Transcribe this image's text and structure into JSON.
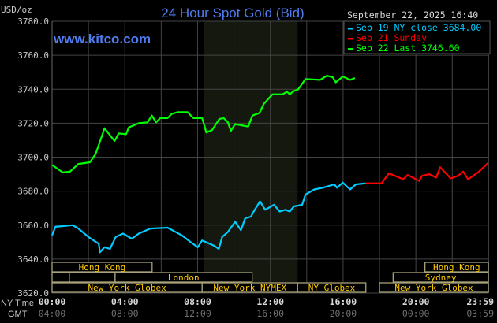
{
  "chart_data": {
    "type": "line",
    "title": "24 Hour Spot Gold (Bid)",
    "watermark": "www.kitco.com",
    "ylabel": "USD/oz",
    "ylim": [
      3620,
      3780
    ],
    "yticks": [
      "3780.0",
      "3760.0",
      "3740.0",
      "3720.0",
      "3700.0",
      "3680.0",
      "3660.0",
      "3640.0",
      "3620.0"
    ],
    "xlim": [
      "00:00",
      "23:59"
    ],
    "x_axis_label": "NY Time",
    "x_axis_label_2": "GMT",
    "xticks_ny": [
      "00:00",
      "04:00",
      "08:00",
      "12:00",
      "16:00",
      "20:00",
      "23:59"
    ],
    "xticks_gmt": [
      "04:00",
      "08:00",
      "12:00",
      "16:00",
      "20:00",
      "00:00",
      "03:59"
    ],
    "grid": true,
    "timestamp": "September 22, 2025 16:40",
    "legend_placement": "top-right",
    "highlighted_period": [
      "08:20",
      "13:30"
    ],
    "series": [
      {
        "name": "Sep 19 NY close 3684.00",
        "color": "#00ccff",
        "points": [
          [
            "00:00",
            3654
          ],
          [
            "00:11",
            3659
          ],
          [
            "01:08",
            3660
          ],
          [
            "01:27",
            3658
          ],
          [
            "02:00",
            3653
          ],
          [
            "02:34",
            3649
          ],
          [
            "02:38",
            3644
          ],
          [
            "02:53",
            3647
          ],
          [
            "03:11",
            3646
          ],
          [
            "03:30",
            3653
          ],
          [
            "03:54",
            3655
          ],
          [
            "04:23",
            3652
          ],
          [
            "04:46",
            3655
          ],
          [
            "05:24",
            3658
          ],
          [
            "06:21",
            3658.5
          ],
          [
            "07:08",
            3654
          ],
          [
            "07:37",
            3650
          ],
          [
            "08:01",
            3647
          ],
          [
            "08:15",
            3651
          ],
          [
            "08:53",
            3648
          ],
          [
            "09:10",
            3646
          ],
          [
            "09:21",
            3653
          ],
          [
            "09:40",
            3656
          ],
          [
            "10:04",
            3662
          ],
          [
            "10:23",
            3657
          ],
          [
            "10:37",
            3664
          ],
          [
            "10:56",
            3665
          ],
          [
            "11:05",
            3668
          ],
          [
            "11:26",
            3674
          ],
          [
            "11:43",
            3669
          ],
          [
            "12:12",
            3672
          ],
          [
            "12:31",
            3668
          ],
          [
            "12:50",
            3669
          ],
          [
            "13:04",
            3668
          ],
          [
            "13:18",
            3671
          ],
          [
            "13:45",
            3672
          ],
          [
            "13:56",
            3678
          ],
          [
            "14:25",
            3681
          ],
          [
            "14:53",
            3682
          ],
          [
            "15:31",
            3684
          ],
          [
            "15:40",
            3682
          ],
          [
            "15:59",
            3685
          ],
          [
            "16:23",
            3681
          ],
          [
            "16:42",
            3684
          ],
          [
            "17:15",
            3684.6
          ]
        ]
      },
      {
        "name": "Sep 21 Sunday",
        "color": "#ff0000",
        "points": [
          [
            "17:15",
            3684.6
          ],
          [
            "18:07",
            3684.6
          ],
          [
            "18:31",
            3690.5
          ],
          [
            "19:18",
            3687
          ],
          [
            "19:33",
            3689.5
          ],
          [
            "20:11",
            3686
          ],
          [
            "20:20",
            3689
          ],
          [
            "20:44",
            3690
          ],
          [
            "21:07",
            3688
          ],
          [
            "21:20",
            3694
          ],
          [
            "21:55",
            3687.5
          ],
          [
            "22:19",
            3689
          ],
          [
            "22:36",
            3691.5
          ],
          [
            "22:52",
            3687
          ],
          [
            "23:25",
            3691
          ],
          [
            "23:58",
            3696.5
          ]
        ]
      },
      {
        "name": "Sep 22 Last 3746.60",
        "color": "#00ff00",
        "points": [
          [
            "00:00",
            3695.4
          ],
          [
            "00:35",
            3691
          ],
          [
            "00:59",
            3691.5
          ],
          [
            "01:27",
            3696
          ],
          [
            "02:05",
            3697
          ],
          [
            "02:24",
            3702
          ],
          [
            "02:53",
            3717
          ],
          [
            "03:26",
            3709.5
          ],
          [
            "03:40",
            3714
          ],
          [
            "04:04",
            3713.5
          ],
          [
            "04:13",
            3717.5
          ],
          [
            "04:46",
            3720
          ],
          [
            "05:15",
            3720.5
          ],
          [
            "05:29",
            3724.5
          ],
          [
            "05:43",
            3720.5
          ],
          [
            "05:57",
            3723
          ],
          [
            "06:21",
            3723
          ],
          [
            "06:35",
            3725.5
          ],
          [
            "06:54",
            3726.5
          ],
          [
            "07:27",
            3726.5
          ],
          [
            "07:46",
            3723
          ],
          [
            "08:15",
            3723
          ],
          [
            "08:29",
            3714.5
          ],
          [
            "08:48",
            3716
          ],
          [
            "09:12",
            3722.5
          ],
          [
            "09:26",
            3723
          ],
          [
            "09:40",
            3720.5
          ],
          [
            "09:50",
            3715.5
          ],
          [
            "10:04",
            3719.5
          ],
          [
            "10:47",
            3718
          ],
          [
            "11:01",
            3724.5
          ],
          [
            "11:24",
            3726
          ],
          [
            "11:39",
            3731.5
          ],
          [
            "12:07",
            3737
          ],
          [
            "12:40",
            3737
          ],
          [
            "12:55",
            3738.5
          ],
          [
            "13:04",
            3737
          ],
          [
            "13:18",
            3739
          ],
          [
            "13:32",
            3740
          ],
          [
            "13:56",
            3746
          ],
          [
            "14:44",
            3745.5
          ],
          [
            "15:07",
            3748
          ],
          [
            "15:26",
            3747
          ],
          [
            "15:36",
            3744
          ],
          [
            "15:59",
            3747.5
          ],
          [
            "16:23",
            3745.5
          ],
          [
            "16:39",
            3746.6
          ]
        ]
      }
    ],
    "sessions": [
      {
        "label": "Hong Kong",
        "row": 0,
        "start": "00:00",
        "end": "05:30"
      },
      {
        "label": "Hong Kong",
        "row": 0,
        "start": "20:30",
        "end": "23:59"
      },
      {
        "label": "",
        "row": 1,
        "start": "00:00",
        "end": "00:57"
      },
      {
        "label": "",
        "row": 1,
        "start": "00:57",
        "end": "03:28"
      },
      {
        "label": "London",
        "row": 1,
        "start": "03:28",
        "end": "11:00"
      },
      {
        "label": "Sydney",
        "row": 1,
        "start": "18:45",
        "end": "23:59"
      },
      {
        "label": "New York Globex",
        "row": 2,
        "start": "00:00",
        "end": "08:15"
      },
      {
        "label": "New York NYMEX",
        "row": 2,
        "start": "08:15",
        "end": "13:30"
      },
      {
        "label": "NY Globex",
        "row": 2,
        "start": "13:30",
        "end": "17:15"
      },
      {
        "label": "New York Globex",
        "row": 2,
        "start": "18:00",
        "end": "23:59"
      }
    ]
  }
}
